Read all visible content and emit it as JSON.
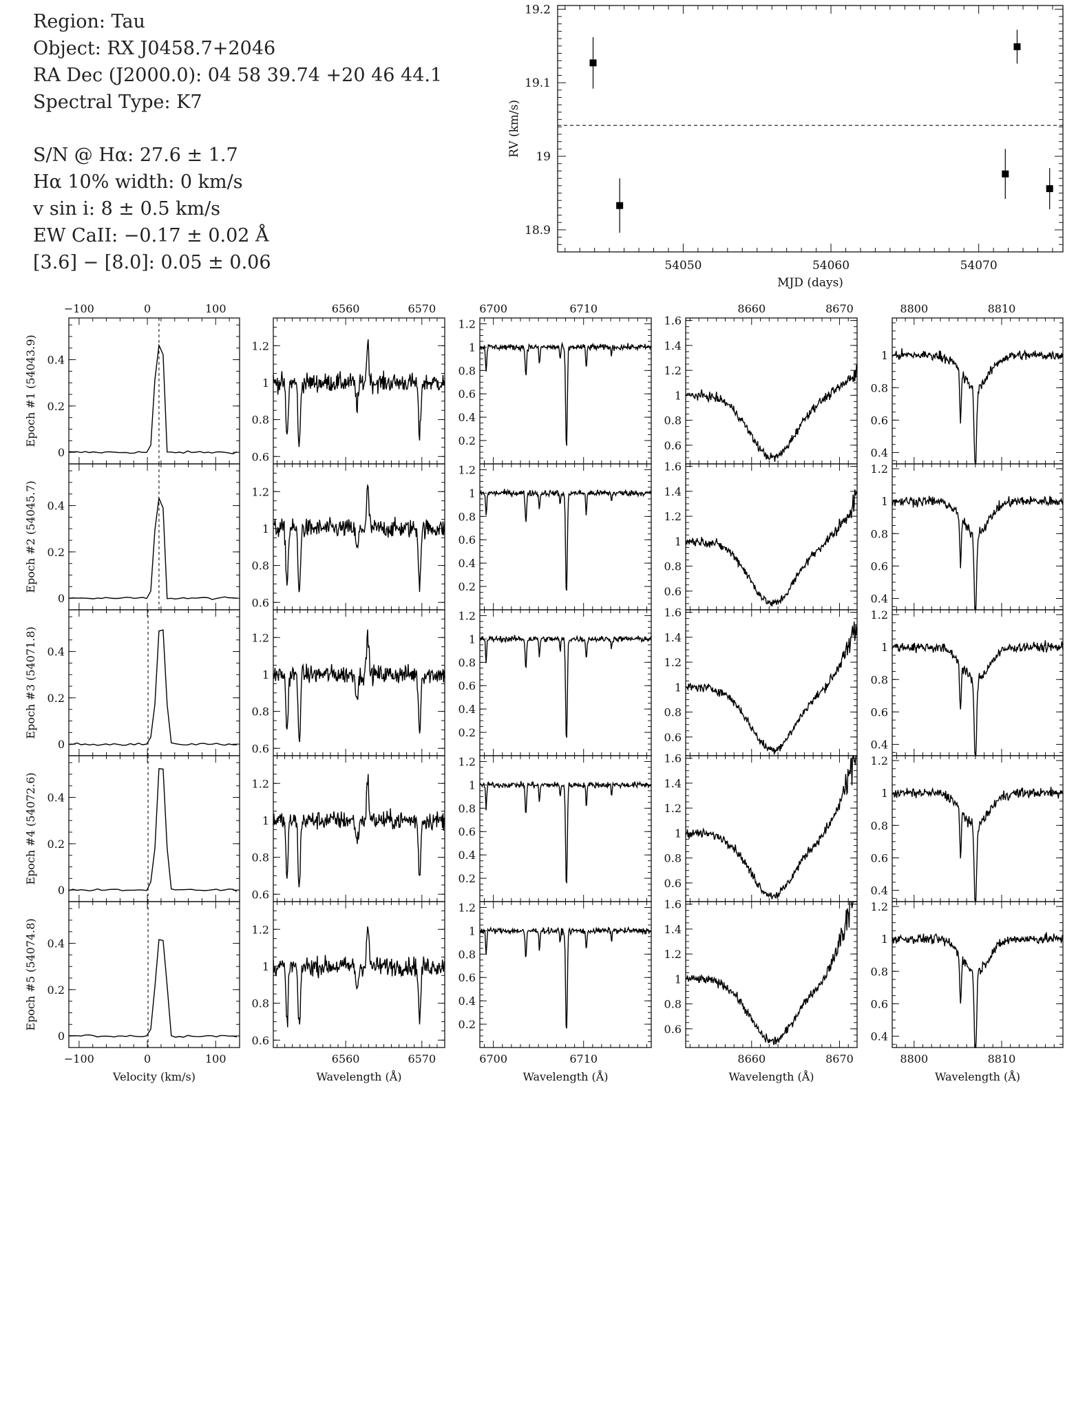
{
  "info": {
    "lines_top": [
      "Region: Tau",
      "Object: RX J0458.7+2046",
      "RA Dec (J2000.0): 04 58 39.74 +20 46 44.1",
      "Spectral Type: K7"
    ],
    "lines_bottom": [
      "S/N @ Hα: 27.6 ± 1.7",
      "Hα 10% width: 0 km/s",
      "v sin i: 8 ± 0.5 km/s",
      "EW CaII: −0.17 ± 0.02 Å",
      "[3.6] − [8.0]: 0.05 ± 0.06"
    ]
  },
  "chart_data": [
    {
      "type": "scatter",
      "name": "rv_vs_time",
      "xlabel": "MJD (days)",
      "ylabel": "RV (km/s)",
      "xlim": [
        54041.5,
        54075.7
      ],
      "ylim": [
        18.87,
        19.205
      ],
      "xticks": [
        54050,
        54060,
        54070
      ],
      "yticks": [
        18.9,
        19.0,
        19.1,
        19.2
      ],
      "ytick_labels": [
        "18.9",
        "19",
        "19.1",
        "19.2"
      ],
      "mean_rv": 19.042,
      "points": [
        {
          "x": 54043.9,
          "y": 19.127,
          "err": 0.035
        },
        {
          "x": 54045.7,
          "y": 18.933,
          "err": 0.037
        },
        {
          "x": 54071.8,
          "y": 18.976,
          "err": 0.034
        },
        {
          "x": 54072.6,
          "y": 19.149,
          "err": 0.023
        },
        {
          "x": 54074.8,
          "y": 18.956,
          "err": 0.028
        }
      ]
    },
    {
      "type": "line",
      "name": "spectra_grid",
      "epochs": [
        {
          "label": "Epoch #1 (54043.9)",
          "mjd": 54043.9
        },
        {
          "label": "Epoch #2 (54045.7)",
          "mjd": 54045.7
        },
        {
          "label": "Epoch #3 (54071.8)",
          "mjd": 54071.8
        },
        {
          "label": "Epoch #4 (54072.6)",
          "mjd": 54072.6
        },
        {
          "label": "Epoch #5 (54074.8)",
          "mjd": 54074.8
        }
      ],
      "columns": [
        {
          "id": "halpha_velocity",
          "xlabel": "Velocity (km/s)",
          "xlim": [
            -115,
            135
          ],
          "xticks": [
            -100,
            0,
            100
          ],
          "xtick_labels": [
            "−100",
            "0",
            "100"
          ],
          "ylims": [
            [
              -0.05,
              0.58
            ],
            [
              -0.05,
              0.58
            ],
            [
              -0.05,
              0.58
            ],
            [
              -0.05,
              0.58
            ],
            [
              -0.05,
              0.58
            ]
          ],
          "yticks": [
            [
              0,
              0.2,
              0.4
            ],
            [
              0,
              0.2,
              0.4
            ],
            [
              0,
              0.2,
              0.4
            ],
            [
              0,
              0.2,
              0.4
            ],
            [
              0,
              0.2,
              0.4
            ]
          ],
          "dashed_x": [
            17,
            17,
            1,
            1,
            1
          ],
          "profiles": [
            {
              "center": 18,
              "peak": 0.46,
              "width": 6
            },
            {
              "center": 18,
              "peak": 0.43,
              "width": 6
            },
            {
              "center": 20,
              "peak": 0.5,
              "width": 6
            },
            {
              "center": 20,
              "peak": 0.53,
              "width": 6
            },
            {
              "center": 20,
              "peak": 0.42,
              "width": 7
            }
          ]
        },
        {
          "id": "6560A",
          "xlabel": "Wavelength (Å)",
          "xlim": [
            6550.5,
            6573
          ],
          "xticks": [
            6560,
            6570
          ],
          "ylims": [
            [
              0.56,
              1.35
            ],
            [
              0.56,
              1.35
            ],
            [
              0.56,
              1.35
            ],
            [
              0.56,
              1.35
            ],
            [
              0.56,
              1.35
            ]
          ],
          "yticks": [
            [
              0.6,
              0.8,
              1,
              1.2
            ],
            [
              0.6,
              0.8,
              1,
              1.2
            ],
            [
              0.6,
              0.8,
              1,
              1.2
            ],
            [
              0.6,
              0.8,
              1,
              1.2
            ],
            [
              0.6,
              0.8,
              1,
              1.2
            ]
          ],
          "lines": [
            [
              6552.3,
              0.3,
              0.35
            ],
            [
              6553.9,
              0.36,
              0.35
            ],
            [
              6569.7,
              0.3,
              0.35
            ],
            [
              6561.5,
              0.12,
              0.4
            ]
          ],
          "emission": [
            6562.9,
            0.22,
            0.35
          ],
          "noise": 0.05
        },
        {
          "id": "6708A",
          "xlabel": "Wavelength (Å)",
          "xlim": [
            6698.5,
            6717.5
          ],
          "xticks": [
            6700,
            6710
          ],
          "ylims": [
            [
              0,
              1.25
            ],
            [
              0,
              1.25
            ],
            [
              0,
              1.25
            ],
            [
              0,
              1.25
            ],
            [
              0,
              1.25
            ]
          ],
          "yticks": [
            [
              0.2,
              0.4,
              0.6,
              0.8,
              1,
              1.2
            ],
            [
              0.2,
              0.4,
              0.6,
              0.8,
              1,
              1.2
            ],
            [
              0.2,
              0.4,
              0.6,
              0.8,
              1,
              1.2
            ],
            [
              0.2,
              0.4,
              0.6,
              0.8,
              1,
              1.2
            ],
            [
              0.2,
              0.4,
              0.6,
              0.8,
              1,
              1.2
            ]
          ],
          "lines": [
            [
              6708.1,
              0.88,
              0.22
            ],
            [
              6703.6,
              0.25,
              0.18
            ],
            [
              6705.1,
              0.15,
              0.15
            ],
            [
              6707.4,
              0.1,
              0.15
            ],
            [
              6710.3,
              0.18,
              0.15
            ],
            [
              6713.1,
              0.08,
              0.12
            ],
            [
              6699.2,
              0.2,
              0.15
            ]
          ],
          "noise": 0.025
        },
        {
          "id": "8662A",
          "xlabel": "Wavelength (Å)",
          "xlim": [
            8652.5,
            8672
          ],
          "xticks": [
            8660,
            8670
          ],
          "ylims": [
            [
              0.45,
              1.62
            ],
            [
              0.45,
              1.62
            ],
            [
              0.45,
              1.62
            ],
            [
              0.45,
              1.62
            ],
            [
              0.45,
              1.62
            ]
          ],
          "yticks": [
            [
              0.6,
              0.8,
              1,
              1.2,
              1.4,
              1.6
            ],
            [
              0.6,
              0.8,
              1,
              1.2,
              1.4,
              1.6
            ],
            [
              0.6,
              0.8,
              1,
              1.2,
              1.4,
              1.6
            ],
            [
              0.6,
              0.8,
              1,
              1.2,
              1.4,
              1.6
            ],
            [
              0.6,
              0.8,
              1,
              1.2,
              1.4,
              1.6
            ]
          ],
          "broad": [
            8662.4,
            0.5,
            2.6
          ],
          "noise": 0.035
        },
        {
          "id": "8807A",
          "xlabel": "Wavelength (Å)",
          "xlim": [
            8797.5,
            8817
          ],
          "xticks": [
            8800,
            8810
          ],
          "ylims": [
            [
              0.33,
              1.23
            ],
            [
              0.33,
              1.23
            ],
            [
              0.33,
              1.23
            ],
            [
              0.33,
              1.23
            ],
            [
              0.33,
              1.23
            ]
          ],
          "yticks": [
            [
              0.4,
              0.6,
              0.8,
              1
            ],
            [
              0.4,
              0.6,
              0.8,
              1,
              1.2
            ],
            [
              0.4,
              0.6,
              0.8,
              1,
              1.2
            ],
            [
              0.4,
              0.6,
              0.8,
              1,
              1.2
            ],
            [
              0.4,
              0.6,
              0.8,
              1,
              1.2
            ]
          ],
          "lines": [
            [
              8807.0,
              0.55,
              0.3
            ],
            [
              8805.3,
              0.3,
              0.2
            ]
          ],
          "broad": [
            8807.0,
            0.2,
            1.5
          ],
          "noise": 0.03
        }
      ]
    }
  ]
}
